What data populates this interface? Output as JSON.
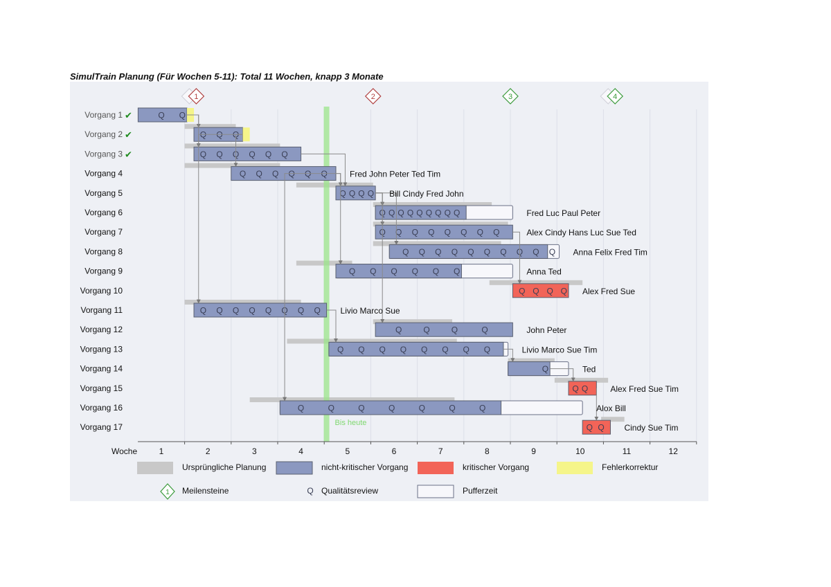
{
  "title": "SimulTrain Planung (Für Wochen 5-11): Total 11 Wochen, knapp 3 Monate",
  "chart_data": {
    "type": "gantt",
    "x_label": "Woche",
    "weeks": [
      "1",
      "2",
      "3",
      "4",
      "5",
      "6",
      "7",
      "8",
      "9",
      "10",
      "11",
      "12"
    ],
    "today": {
      "week": 4.55,
      "label": "Bis heute"
    },
    "milestones": [
      {
        "label": "1",
        "week": 1.75,
        "color": "#b04040",
        "shadow": true
      },
      {
        "label": "2",
        "week": 5.55,
        "color": "#b04040",
        "shadow": false
      },
      {
        "label": "3",
        "week": 8.5,
        "color": "#3a9a3a",
        "shadow": false
      },
      {
        "label": "4",
        "week": 10.75,
        "color": "#3a9a3a",
        "shadow": true
      }
    ],
    "tasks": [
      {
        "name": "Vorgang 1",
        "done": true,
        "start": 0.5,
        "end": 1.55,
        "buffer_end": null,
        "fix_end": 1.7,
        "critical": false,
        "q": [
          "1.0",
          "1.45"
        ],
        "plan": null,
        "people": ""
      },
      {
        "name": "Vorgang 2",
        "done": true,
        "start": 1.7,
        "end": 2.75,
        "buffer_end": null,
        "fix_end": 2.9,
        "critical": false,
        "q": [
          "1.9",
          "2.25",
          "2.6"
        ],
        "plan": [
          1.5,
          2.6
        ],
        "people": ""
      },
      {
        "name": "Vorgang 3",
        "done": true,
        "start": 1.7,
        "end": 4.0,
        "buffer_end": null,
        "fix_end": null,
        "critical": false,
        "q": [
          "1.9",
          "2.25",
          "2.6",
          "2.95",
          "3.3",
          "3.65"
        ],
        "plan": [
          1.5,
          3.55
        ],
        "people": ""
      },
      {
        "name": "Vorgang 4",
        "done": false,
        "start": 2.5,
        "end": 4.75,
        "buffer_end": null,
        "fix_end": null,
        "critical": false,
        "q": [
          "2.75",
          "3.1",
          "3.45",
          "3.8",
          "4.15",
          "4.5"
        ],
        "plan": [
          1.5,
          3.55
        ],
        "people": "Fred John Peter Ted Tim"
      },
      {
        "name": "Vorgang 5",
        "done": false,
        "start": 4.75,
        "end": 5.6,
        "buffer_end": null,
        "fix_end": null,
        "critical": false,
        "q": [
          "4.9",
          "5.1",
          "5.3",
          "5.5"
        ],
        "plan": [
          3.9,
          5.55
        ],
        "people": "Bill Cindy Fred John"
      },
      {
        "name": "Vorgang 6",
        "done": false,
        "start": 5.6,
        "end": 7.55,
        "buffer_end": 8.55,
        "fix_end": null,
        "critical": false,
        "q": [
          "5.75",
          "5.95",
          "6.15",
          "6.35",
          "6.55",
          "6.75",
          "6.95",
          "7.15",
          "7.35"
        ],
        "plan": [
          5.55,
          8.1
        ],
        "people": "Fred Luc Paul Peter"
      },
      {
        "name": "Vorgang 7",
        "done": false,
        "start": 5.6,
        "end": 8.55,
        "buffer_end": null,
        "fix_end": null,
        "critical": false,
        "q": [
          "5.75",
          "6.1",
          "6.45",
          "6.8",
          "7.15",
          "7.5",
          "7.85",
          "8.2"
        ],
        "plan": [
          5.55,
          8.45
        ],
        "people": "Alex Cindy Hans Luc Sue Ted"
      },
      {
        "name": "Vorgang 8",
        "done": false,
        "start": 5.9,
        "end": 9.3,
        "buffer_end": 9.55,
        "fix_end": null,
        "critical": false,
        "q": [
          "6.25",
          "6.6",
          "6.95",
          "7.3",
          "7.65",
          "8.0",
          "8.35",
          "8.7",
          "9.05",
          "9.4"
        ],
        "plan": [
          5.55,
          8.3
        ],
        "people": "Anna Felix Fred Tim"
      },
      {
        "name": "Vorgang 9",
        "done": false,
        "start": 4.75,
        "end": 7.45,
        "buffer_end": 8.55,
        "fix_end": null,
        "critical": false,
        "q": [
          "5.1",
          "5.55",
          "6.0",
          "6.45",
          "6.9",
          "7.35"
        ],
        "plan": [
          3.9,
          5.1
        ],
        "people": "Anna Ted"
      },
      {
        "name": "Vorgang 10",
        "done": false,
        "start": 8.55,
        "end": 9.75,
        "buffer_end": null,
        "fix_end": null,
        "critical": true,
        "q": [
          "8.75",
          "9.05",
          "9.35",
          "9.65"
        ],
        "plan": [
          8.05,
          10.05
        ],
        "people": "Alex Fred Sue"
      },
      {
        "name": "Vorgang 11",
        "done": false,
        "start": 1.7,
        "end": 4.55,
        "buffer_end": null,
        "fix_end": null,
        "critical": false,
        "q": [
          "1.9",
          "2.25",
          "2.6",
          "2.95",
          "3.3",
          "3.65",
          "4.0",
          "4.35"
        ],
        "plan": [
          1.5,
          4.0
        ],
        "people": "Livio Marco Sue"
      },
      {
        "name": "Vorgang 12",
        "done": false,
        "start": 5.6,
        "end": 8.55,
        "buffer_end": null,
        "fix_end": null,
        "critical": false,
        "q": [
          "6.1",
          "6.7",
          "7.3",
          "7.95"
        ],
        "plan": [
          5.55,
          7.25
        ],
        "people": "John Peter"
      },
      {
        "name": "Vorgang 13",
        "done": false,
        "start": 4.6,
        "end": 8.35,
        "buffer_end": 8.45,
        "fix_end": null,
        "critical": false,
        "q": [
          "4.85",
          "5.3",
          "5.75",
          "6.2",
          "6.65",
          "7.1",
          "7.55",
          "8.0"
        ],
        "plan": [
          3.7,
          7.35
        ],
        "people": "Livio Marco Sue Tim"
      },
      {
        "name": "Vorgang 14",
        "done": false,
        "start": 8.45,
        "end": 9.35,
        "buffer_end": 9.75,
        "fix_end": null,
        "critical": false,
        "q": [
          "9.25"
        ],
        "plan": [
          8.45,
          9.45
        ],
        "people": "Ted"
      },
      {
        "name": "Vorgang 15",
        "done": false,
        "start": 9.75,
        "end": 10.35,
        "buffer_end": null,
        "fix_end": null,
        "critical": true,
        "q": [
          "9.9",
          "10.1"
        ],
        "plan": [
          9.45,
          10.6
        ],
        "people": "Alex Fred Sue Tim"
      },
      {
        "name": "Vorgang 16",
        "done": false,
        "start": 3.55,
        "end": 8.3,
        "buffer_end": 10.05,
        "fix_end": null,
        "critical": false,
        "q": [
          "4.0",
          "4.65",
          "5.3",
          "5.95",
          "6.6",
          "7.25",
          "7.9"
        ],
        "plan": [
          2.9,
          7.3
        ],
        "people": "Alox Bill"
      },
      {
        "name": "Vorgang 17",
        "done": false,
        "start": 10.05,
        "end": 10.65,
        "buffer_end": null,
        "fix_end": null,
        "critical": true,
        "q": [
          "10.2",
          "10.45"
        ],
        "plan": [
          10.45,
          10.95
        ],
        "people": "Cindy Sue Tim"
      }
    ],
    "legend": [
      {
        "key": "plan",
        "label": "Ursprüngliche Planung"
      },
      {
        "key": "normal",
        "label": "nicht-kritischer Vorgang"
      },
      {
        "key": "critical",
        "label": "kritischer Vorgang"
      },
      {
        "key": "fix",
        "label": "Fehlerkorrektur"
      },
      {
        "key": "milestone",
        "label": "Meilensteine"
      },
      {
        "key": "review",
        "label": "Qualitätsreview"
      },
      {
        "key": "buffer",
        "label": "Pufferzeit"
      }
    ],
    "colors": {
      "normal": "#8b98c0",
      "critical": "#f26458",
      "fix": "#f5f58a",
      "plan": "#c8c8c8",
      "buffer": "#f7f7fb",
      "today": "#9be68a",
      "today_label": "#7fd86f",
      "background": "#eef0f5"
    }
  }
}
